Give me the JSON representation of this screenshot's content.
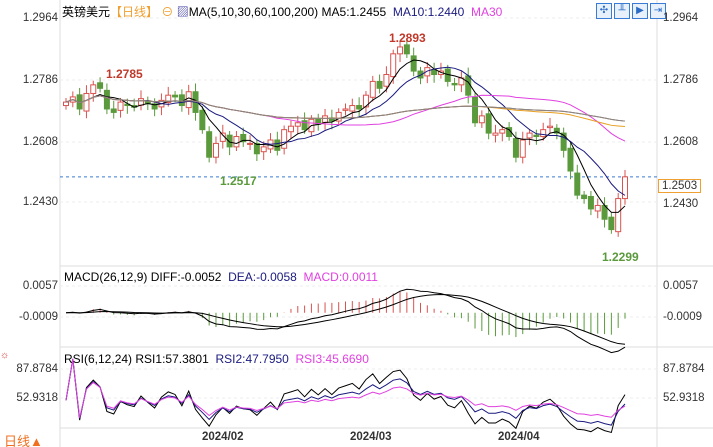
{
  "header": {
    "symbol": "英镑美元",
    "period": "【日线】",
    "ma_label": "MA(5,10,30,60,100,200)",
    "ma5": "MA5:1.2455",
    "ma10": "MA10:1.2440",
    "ma30": "MA30",
    "toolbar_icons": [
      "crosshair-icon",
      "chart-type-icon",
      "play-icon",
      "exit-icon"
    ]
  },
  "price_axis": {
    "ticks": [
      "1.2964",
      "1.2786",
      "1.2608",
      "1.2430"
    ],
    "current": "1.2503"
  },
  "annotations": {
    "high1": "1.2785",
    "high2": "1.2893",
    "low1": "1.2517",
    "low2": "1.2299"
  },
  "macd": {
    "label": "MACD(26,12,9)",
    "diff": "DIFF:-0.0052",
    "dea": "DEA:-0.0058",
    "macd": "MACD:0.0011",
    "ticks": [
      "0.0057",
      "-0.0009"
    ]
  },
  "rsi": {
    "label": "RSI(6,12,24)",
    "rsi1": "RSI1:57.3801",
    "rsi2": "RSI2:47.7950",
    "rsi3": "RSI3:45.6690",
    "ticks": [
      "87.8784",
      "52.9318"
    ]
  },
  "dates": [
    "2024/02",
    "2024/03",
    "2024/04"
  ],
  "period_button": "日线▲",
  "colors": {
    "up": "#d9534f",
    "down": "#5a9a3c",
    "ma5": "#000000",
    "ma10": "#1a1a80",
    "ma30": "#e040e0",
    "ma60": "#e8a020",
    "ma100": "#a05030",
    "ma200": "#888888",
    "current": "#3a7bd5"
  },
  "chart_data": {
    "type": "candlestick",
    "closes": [
      1.272,
      1.2735,
      1.27,
      1.2745,
      1.277,
      1.276,
      1.27,
      1.269,
      1.272,
      1.271,
      1.2705,
      1.273,
      1.2715,
      1.27,
      1.2725,
      1.274,
      1.2735,
      1.271,
      1.275,
      1.269,
      1.264,
      1.256,
      1.26,
      1.263,
      1.259,
      1.262,
      1.2605,
      1.26,
      1.257,
      1.259,
      1.261,
      1.258,
      1.264,
      1.265,
      1.266,
      1.264,
      1.267,
      1.2655,
      1.268,
      1.2665,
      1.269,
      1.27,
      1.271,
      1.27,
      1.274,
      1.278,
      1.276,
      1.28,
      1.286,
      1.288,
      1.286,
      1.281,
      1.279,
      1.282,
      1.28,
      1.281,
      1.278,
      1.277,
      1.279,
      1.274,
      1.266,
      1.268,
      1.263,
      1.263,
      1.264,
      1.262,
      1.256,
      1.261,
      1.263,
      1.262,
      1.264,
      1.265,
      1.263,
      1.258,
      1.252,
      1.245,
      1.244,
      1.241,
      1.242,
      1.238,
      1.235,
      1.244,
      1.2503
    ],
    "ylim": [
      1.239,
      1.2964
    ]
  }
}
